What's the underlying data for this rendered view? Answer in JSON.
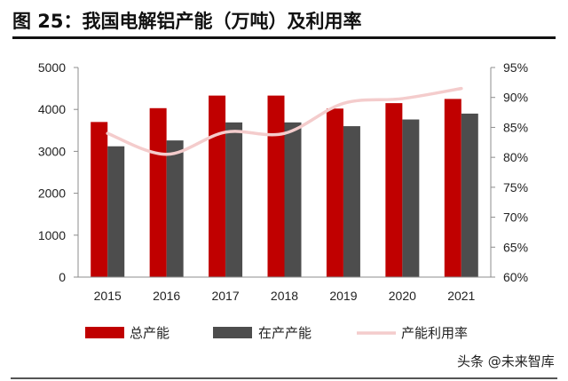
{
  "title": "图 25：我国电解铝产能（万吨）及利用率",
  "watermark": "头条 @未来智库",
  "colors": {
    "capacity": "#c00000",
    "operating": "#4d4d4d",
    "utilization": "#f4cccc",
    "title_rule": "#111111"
  },
  "chart_data": {
    "type": "bar",
    "categories": [
      "2015",
      "2016",
      "2017",
      "2018",
      "2019",
      "2020",
      "2021"
    ],
    "series": [
      {
        "name": "总产能",
        "kind": "bar",
        "axis": "left",
        "values": [
          3700,
          4030,
          4330,
          4330,
          4020,
          4150,
          4250
        ]
      },
      {
        "name": "在产产能",
        "kind": "bar",
        "axis": "left",
        "values": [
          3120,
          3260,
          3690,
          3690,
          3600,
          3760,
          3900
        ]
      },
      {
        "name": "产能利用率",
        "kind": "line",
        "axis": "right",
        "values": [
          84,
          80.5,
          84.2,
          84,
          89,
          89.8,
          91.5
        ]
      }
    ],
    "y_left": {
      "ylim": [
        0,
        5000
      ],
      "ticks": [
        "0",
        "1000",
        "2000",
        "3000",
        "4000",
        "5000"
      ]
    },
    "y_right": {
      "ylim": [
        60,
        95
      ],
      "ticks": [
        "60%",
        "65%",
        "70%",
        "75%",
        "80%",
        "85%",
        "90%",
        "95%"
      ]
    },
    "legend_placement": "bottom",
    "grid": false
  }
}
